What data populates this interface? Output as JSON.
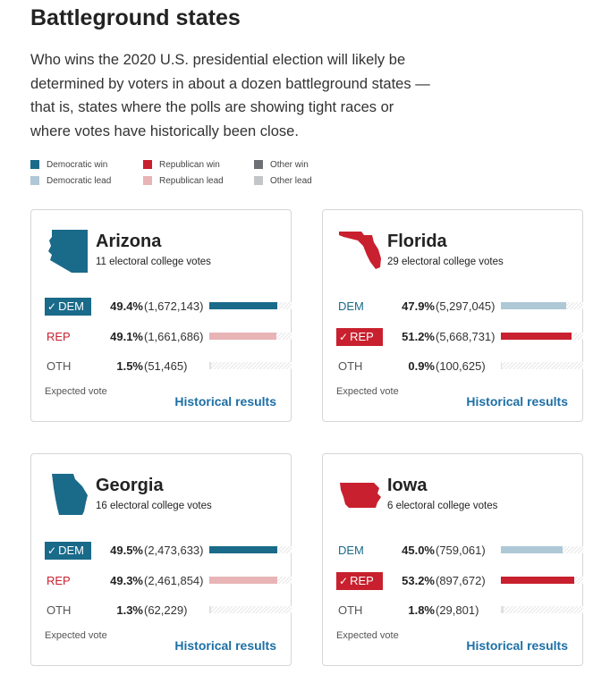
{
  "title": "Battleground states",
  "intro": "Who wins the 2020 U.S. presidential election will likely be determined by voters in about a dozen battleground states — that is, states where the polls are showing tight races or where votes have historically been close.",
  "colors": {
    "dem_win": "#1a6a8a",
    "dem_lead": "#aec8d6",
    "rep_win": "#c8202e",
    "rep_lead": "#e8b4b6",
    "oth_win": "#6c6f73",
    "oth_lead": "#c3c5c8",
    "link": "#1d6fa5"
  },
  "legend": [
    {
      "label": "Democratic win",
      "color": "#1a6a8a"
    },
    {
      "label": "Republican win",
      "color": "#c8202e"
    },
    {
      "label": "Other win",
      "color": "#6c6f73"
    },
    {
      "label": "Democratic lead",
      "color": "#aec8d6"
    },
    {
      "label": "Republican lead",
      "color": "#e8b4b6"
    },
    {
      "label": "Other lead",
      "color": "#c3c5c8"
    }
  ],
  "states": [
    {
      "name": "Arizona",
      "ev": "11 electoral college votes",
      "shape": "arizona-shape-icon",
      "map_color": "#1a6a8a",
      "rows": [
        {
          "party": "DEM",
          "pct": "49.4%",
          "votes": "(1,672,143)",
          "share": 0.494,
          "status": "win"
        },
        {
          "party": "REP",
          "pct": "49.1%",
          "votes": "(1,661,686)",
          "share": 0.491,
          "status": "lead"
        },
        {
          "party": "OTH",
          "pct": "1.5%",
          "votes": "(51,465)",
          "share": 0.015,
          "status": "none"
        }
      ],
      "expected": "Expected vote",
      "link": "Historical results"
    },
    {
      "name": "Florida",
      "ev": "29 electoral college votes",
      "shape": "florida-shape-icon",
      "map_color": "#c8202e",
      "rows": [
        {
          "party": "DEM",
          "pct": "47.9%",
          "votes": "(5,297,045)",
          "share": 0.479,
          "status": "lead"
        },
        {
          "party": "REP",
          "pct": "51.2%",
          "votes": "(5,668,731)",
          "share": 0.512,
          "status": "win"
        },
        {
          "party": "OTH",
          "pct": "0.9%",
          "votes": "(100,625)",
          "share": 0.009,
          "status": "none"
        }
      ],
      "expected": "Expected vote",
      "link": "Historical results"
    },
    {
      "name": "Georgia",
      "ev": "16 electoral college votes",
      "shape": "georgia-shape-icon",
      "map_color": "#1a6a8a",
      "rows": [
        {
          "party": "DEM",
          "pct": "49.5%",
          "votes": "(2,473,633)",
          "share": 0.495,
          "status": "win"
        },
        {
          "party": "REP",
          "pct": "49.3%",
          "votes": "(2,461,854)",
          "share": 0.493,
          "status": "lead"
        },
        {
          "party": "OTH",
          "pct": "1.3%",
          "votes": "(62,229)",
          "share": 0.013,
          "status": "none"
        }
      ],
      "expected": "Expected vote",
      "link": "Historical results"
    },
    {
      "name": "Iowa",
      "ev": "6 electoral college votes",
      "shape": "iowa-shape-icon",
      "map_color": "#c8202e",
      "rows": [
        {
          "party": "DEM",
          "pct": "45.0%",
          "votes": "(759,061)",
          "share": 0.45,
          "status": "lead"
        },
        {
          "party": "REP",
          "pct": "53.2%",
          "votes": "(897,672)",
          "share": 0.532,
          "status": "win"
        },
        {
          "party": "OTH",
          "pct": "1.8%",
          "votes": "(29,801)",
          "share": 0.018,
          "status": "none"
        }
      ],
      "expected": "Expected vote",
      "link": "Historical results"
    }
  ]
}
